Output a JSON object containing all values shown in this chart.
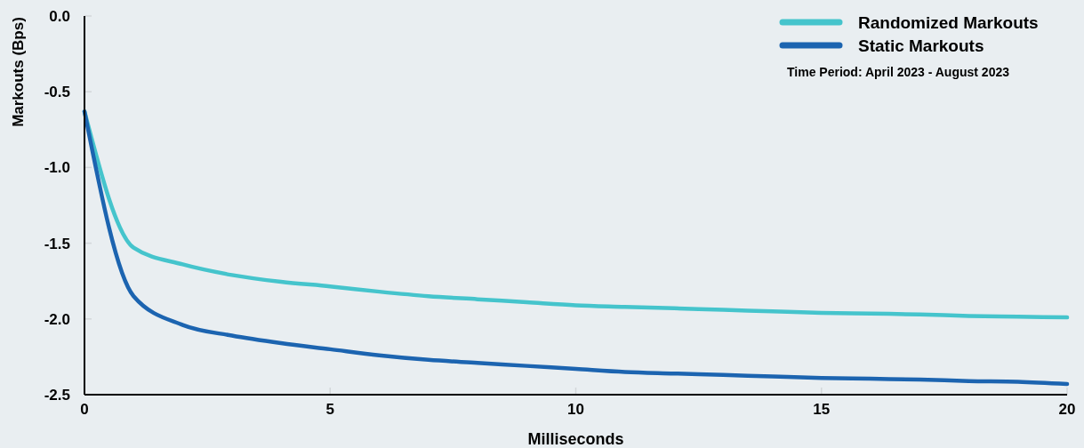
{
  "chart_data": {
    "type": "line",
    "xlabel": "Milliseconds",
    "ylabel": "Markouts (Bps)",
    "x": [
      0,
      1,
      2,
      3,
      4,
      5,
      6,
      7,
      8,
      9,
      10,
      11,
      12,
      13,
      14,
      15,
      16,
      17,
      18,
      19,
      20
    ],
    "series": [
      {
        "name": "Randomized Markouts",
        "color": "#45c4cc",
        "values": [
          -0.63,
          -1.53,
          -1.64,
          -1.71,
          -1.755,
          -1.785,
          -1.82,
          -1.85,
          -1.87,
          -1.89,
          -1.91,
          -1.92,
          -1.93,
          -1.94,
          -1.95,
          -1.96,
          -1.965,
          -1.97,
          -1.98,
          -1.985,
          -1.99
        ]
      },
      {
        "name": "Static Markouts",
        "color": "#1c64b0",
        "values": [
          -0.63,
          -1.85,
          -2.04,
          -2.11,
          -2.16,
          -2.2,
          -2.24,
          -2.27,
          -2.29,
          -2.31,
          -2.33,
          -2.35,
          -2.36,
          -2.37,
          -2.38,
          -2.39,
          -2.395,
          -2.4,
          -2.41,
          -2.415,
          -2.43
        ]
      }
    ],
    "xlim": [
      0,
      20
    ],
    "xticks": [
      0,
      5,
      10,
      15,
      20
    ],
    "ylim": [
      -2.5,
      0
    ],
    "yticks": [
      {
        "value": -2.5,
        "label": "-2.5"
      },
      {
        "value": -2,
        "label": "-2.0"
      },
      {
        "value": -1.5,
        "label": "-1.5"
      },
      {
        "value": -1,
        "label": "-1.0"
      },
      {
        "value": -0.5,
        "label": "-0.5"
      },
      {
        "value": 0,
        "label": "0.0"
      }
    ],
    "legend": "top right",
    "marker": "none",
    "line_style": "solid",
    "annotations": [
      "Time Period: April 2023 - August 2023"
    ]
  }
}
